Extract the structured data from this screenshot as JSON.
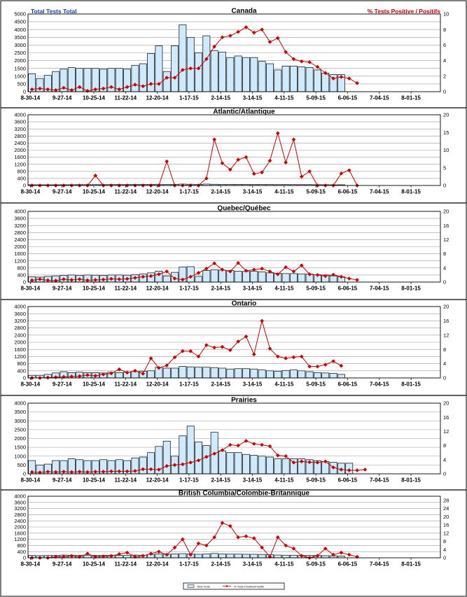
{
  "header": {
    "left_title": "Total Tests Total",
    "right_title": "% Tests Positive / Positifs"
  },
  "legend": {
    "bars_label": "Total Tests",
    "line_label": "% Tests Positive/Positifs"
  },
  "colors": {
    "bar_fill": "#cfeafc",
    "bar_stroke": "#000000",
    "line": "#cc0000",
    "left_title": "#1f3fa8",
    "right_title": "#cc0000",
    "grid": "#9a9a9a"
  },
  "x_tick_labels": [
    "8-30-14",
    "9-27-14",
    "10-25-14",
    "11-22-14",
    "12-20-14",
    "1-17-15",
    "2-14-15",
    "3-14-15",
    "4-11-15",
    "5-09-15",
    "6-06-15",
    "7-04-15",
    "8-01-15"
  ],
  "chart_data": [
    {
      "type": "bar",
      "title": "Canada",
      "weeks": 52,
      "ylim": [
        0,
        5000
      ],
      "y_ticks": [
        0,
        500,
        1000,
        1500,
        2000,
        2500,
        3000,
        3500,
        4000,
        4500,
        5000
      ],
      "y2lim": [
        0,
        10
      ],
      "y2_ticks": [
        0,
        2,
        4,
        6,
        8,
        10
      ],
      "series": [
        {
          "name": "Total Tests",
          "values": [
            1150,
            850,
            1050,
            1300,
            1450,
            1550,
            1500,
            1500,
            1500,
            1450,
            1500,
            1500,
            1450,
            1700,
            1800,
            2450,
            2950,
            1300,
            2950,
            4300,
            3500,
            2500,
            3600,
            2650,
            2550,
            2200,
            2300,
            2200,
            2200,
            1950,
            1800,
            1400,
            1650,
            1650,
            1600,
            1550,
            1400,
            1200,
            1100,
            1100
          ]
        },
        {
          "name": "% Tests Positive / Positifs",
          "values": [
            0.3,
            0.4,
            0.3,
            0.2,
            0.5,
            0.2,
            0.6,
            0.1,
            0.3,
            0.4,
            0.6,
            0.3,
            0.6,
            0.9,
            0.7,
            1.0,
            1.0,
            1.8,
            1.8,
            2.8,
            3.0,
            3.0,
            4.2,
            5.8,
            7.0,
            7.2,
            7.7,
            8.3,
            7.6,
            8.0,
            6.4,
            6.9,
            5.1,
            4.2,
            3.9,
            3.8,
            3.2,
            2.4,
            1.7,
            1.9,
            1.7,
            1.1
          ]
        }
      ]
    },
    {
      "type": "bar",
      "title": "Atlantic/Atlantique",
      "weeks": 52,
      "ylim": [
        0,
        4000
      ],
      "y_ticks": [
        0,
        400,
        800,
        1200,
        1600,
        2000,
        2400,
        2800,
        3200,
        3600,
        4000
      ],
      "y2lim": [
        0,
        20
      ],
      "y2_ticks": [
        0,
        5,
        10,
        15,
        20
      ],
      "series": [
        {
          "name": "Total Tests",
          "values": [
            40,
            40,
            40,
            40,
            45,
            45,
            50,
            50,
            50,
            50,
            55,
            55,
            55,
            60,
            60,
            65,
            70,
            55,
            65,
            80,
            70,
            60,
            80,
            70,
            60,
            60,
            65,
            60,
            60,
            60,
            55,
            50,
            55,
            50,
            50,
            50,
            45,
            45,
            40,
            40
          ]
        },
        {
          "name": "% Tests Positive / Positifs",
          "values": [
            0,
            0,
            0,
            0,
            0,
            0,
            0,
            0,
            2.8,
            0,
            0,
            0,
            0,
            0,
            0,
            0,
            0,
            6.8,
            0,
            0,
            0,
            0,
            2,
            13,
            6.3,
            4.5,
            7.3,
            8,
            3.3,
            3.7,
            7,
            14.8,
            6.5,
            13,
            2.5,
            4,
            0,
            0,
            0,
            3.4,
            4.3,
            0
          ]
        }
      ]
    },
    {
      "type": "bar",
      "title": "Quebec/Québec",
      "weeks": 52,
      "ylim": [
        0,
        4000
      ],
      "y_ticks": [
        0,
        400,
        800,
        1200,
        1600,
        2000,
        2400,
        2800,
        3200,
        3600,
        4000
      ],
      "y2lim": [
        0,
        20
      ],
      "y2_ticks": [
        0,
        4,
        8,
        12,
        16,
        20
      ],
      "series": [
        {
          "name": "Total Tests",
          "values": [
            300,
            280,
            320,
            350,
            380,
            400,
            380,
            400,
            390,
            370,
            400,
            400,
            390,
            420,
            450,
            520,
            620,
            350,
            550,
            850,
            870,
            320,
            650,
            700,
            680,
            650,
            620,
            600,
            620,
            580,
            520,
            500,
            480,
            480,
            460,
            450,
            420,
            400,
            350,
            300
          ]
        },
        {
          "name": "% Tests Positive / Positifs",
          "values": [
            0.5,
            0.8,
            0.5,
            0.4,
            0.8,
            0.6,
            0.8,
            0.5,
            0.6,
            0.7,
            0.9,
            0.8,
            0.9,
            1.2,
            1.5,
            1.7,
            2.2,
            3.0,
            1.0,
            0.7,
            1.5,
            2.6,
            3.8,
            5.3,
            3.5,
            3.0,
            5.4,
            3.2,
            3.5,
            3.8,
            3.0,
            2.2,
            4.2,
            3.0,
            4.7,
            2.2,
            2.0,
            1.7,
            2.1,
            1.5,
            1.0,
            0.6
          ]
        }
      ]
    },
    {
      "type": "bar",
      "title": "Ontario",
      "weeks": 52,
      "ylim": [
        0,
        4000
      ],
      "y_ticks": [
        0,
        400,
        800,
        1200,
        1600,
        2000,
        2400,
        2800,
        3200,
        3600,
        4000
      ],
      "y2lim": [
        0,
        20
      ],
      "y2_ticks": [
        0,
        4,
        8,
        12,
        16,
        20
      ],
      "series": [
        {
          "name": "Total Tests",
          "values": [
            150,
            150,
            200,
            280,
            350,
            300,
            320,
            300,
            300,
            280,
            320,
            300,
            320,
            360,
            380,
            400,
            600,
            550,
            550,
            650,
            620,
            600,
            600,
            580,
            550,
            500,
            520,
            520,
            500,
            450,
            400,
            380,
            420,
            450,
            400,
            350,
            300,
            280,
            260,
            200
          ]
        },
        {
          "name": "% Tests Positive / Positifs",
          "values": [
            0,
            0,
            0.1,
            0.2,
            0.3,
            0.4,
            0.5,
            0.8,
            0.6,
            1.0,
            1.3,
            2.4,
            1.5,
            2.0,
            1.2,
            5.5,
            2.8,
            3.5,
            5.8,
            7.5,
            7.5,
            6.0,
            9.2,
            8.5,
            8.7,
            7.8,
            10.2,
            11.6,
            6.6,
            16.0,
            8.2,
            6.0,
            5.5,
            5.8,
            6.0,
            3.2,
            3.2,
            3.7,
            4.7,
            3.4
          ]
        }
      ]
    },
    {
      "type": "bar",
      "title": "Prairies",
      "weeks": 52,
      "ylim": [
        0,
        4000
      ],
      "y_ticks": [
        0,
        500,
        1000,
        1500,
        2000,
        2500,
        3000,
        3500,
        4000
      ],
      "y2lim": [
        0,
        20
      ],
      "y2_ticks": [
        0,
        4,
        8,
        12,
        16,
        20
      ],
      "series": [
        {
          "name": "Total Tests",
          "values": [
            750,
            500,
            550,
            750,
            750,
            850,
            800,
            750,
            750,
            800,
            750,
            800,
            750,
            900,
            950,
            1200,
            1550,
            1850,
            1000,
            2150,
            2700,
            1800,
            1600,
            2350,
            1300,
            1200,
            1200,
            1100,
            1050,
            1000,
            950,
            850,
            850,
            850,
            850,
            800,
            750,
            700,
            650,
            600,
            600
          ]
        },
        {
          "name": "% Tests Positive / Positifs",
          "values": [
            0.5,
            0.4,
            0.6,
            0.5,
            0.6,
            0.5,
            0.6,
            0.5,
            0.6,
            0.6,
            0.7,
            0.7,
            0.7,
            0.8,
            1.3,
            1.3,
            1.2,
            2.2,
            2.5,
            2.7,
            3.2,
            3.8,
            4.8,
            5.7,
            6.7,
            8.2,
            8.0,
            9.3,
            8.5,
            8.2,
            7.8,
            5.2,
            5.0,
            3.2,
            3.5,
            3.3,
            3.2,
            3.5,
            1.8,
            1.2,
            1.0,
            1.0,
            1.2
          ]
        }
      ]
    },
    {
      "type": "bar",
      "title": "British Columbia/Colombie-Britannique",
      "weeks": 52,
      "ylim": [
        0,
        4000
      ],
      "y_ticks": [
        0,
        400,
        800,
        1200,
        1600,
        2000,
        2400,
        2800,
        3200,
        3600,
        4000
      ],
      "y2lim": [
        0,
        30
      ],
      "y2_ticks": [
        0,
        4,
        8,
        12,
        16,
        20,
        24,
        28
      ],
      "series": [
        {
          "name": "Total Tests",
          "values": [
            150,
            140,
            150,
            160,
            180,
            170,
            160,
            170,
            160,
            160,
            170,
            160,
            150,
            180,
            170,
            220,
            250,
            230,
            250,
            270,
            260,
            230,
            250,
            280,
            250,
            240,
            240,
            230,
            230,
            220,
            200,
            180,
            170,
            170,
            160,
            160,
            150,
            140,
            130,
            120
          ]
        },
        {
          "name": "% Tests Positive / Positifs",
          "values": [
            0,
            0,
            0,
            0.5,
            0.6,
            0.9,
            0.5,
            2.0,
            0.5,
            0.7,
            0.9,
            1.8,
            2.5,
            0.5,
            1.0,
            2.0,
            3.0,
            1.5,
            5.0,
            9.0,
            1.5,
            7.0,
            6.0,
            10.0,
            17.0,
            15.5,
            10.0,
            10.5,
            9.5,
            5.0,
            0.5,
            10.0,
            6.0,
            4.5,
            1.0,
            0,
            1.0,
            4.5,
            1.5,
            2.5,
            1.5,
            0.5
          ]
        }
      ]
    }
  ]
}
